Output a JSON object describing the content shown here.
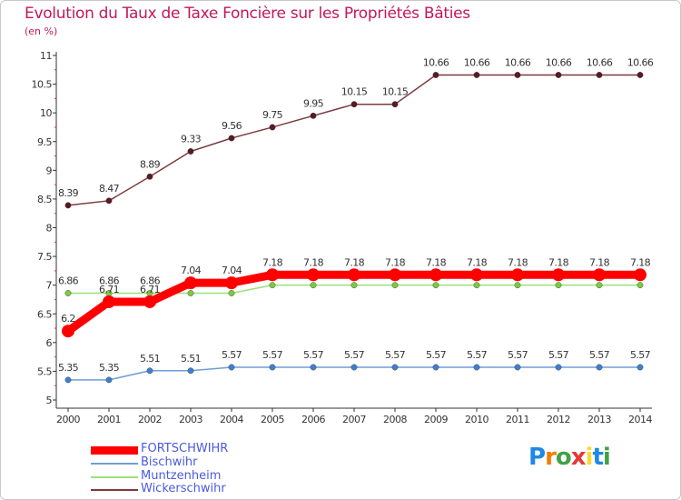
{
  "title": "Evolution du Taux de Taxe Foncière sur les Propriétés Bâties",
  "subtitle": "(en %)",
  "logo": {
    "text": "Proxiti",
    "letters": [
      "P",
      "r",
      "o",
      "x",
      "i",
      "t",
      "i"
    ],
    "colors": [
      "#1e88e5",
      "#f57c00",
      "#43a047",
      "#e53935",
      "#fdd835",
      "#1e88e5",
      "#43a047"
    ]
  },
  "chart_data": {
    "type": "line",
    "x": [
      "2000",
      "2001",
      "2002",
      "2003",
      "2004",
      "2005",
      "2006",
      "2007",
      "2008",
      "2009",
      "2010",
      "2011",
      "2012",
      "2013",
      "2014"
    ],
    "ylim": [
      5,
      11
    ],
    "yticks": [
      "5",
      "5.5",
      "6",
      "6.5",
      "7",
      "7.5",
      "8",
      "8.5",
      "9",
      "9.5",
      "10",
      "10.5",
      "11"
    ],
    "grid": false,
    "legend_position": "bottom-left",
    "series": [
      {
        "name": "FORTSCHWIHR",
        "color": "#ff0000",
        "marker_color": "#ff0000",
        "bold": true,
        "values": [
          6.2,
          6.71,
          6.71,
          7.04,
          7.04,
          7.18,
          7.18,
          7.18,
          7.18,
          7.18,
          7.18,
          7.18,
          7.18,
          7.18,
          7.18
        ],
        "labels": [
          "6.2",
          "6.71",
          "6.71",
          "7.04",
          "7.04",
          "7.18",
          "7.18",
          "7.18",
          "7.18",
          "7.18",
          "7.18",
          "7.18",
          "7.18",
          "7.18",
          "7.18"
        ]
      },
      {
        "name": "Bischwihr",
        "color": "#6e9ed6",
        "marker_color": "#3f7fd0",
        "bold": false,
        "values": [
          5.35,
          5.35,
          5.51,
          5.51,
          5.57,
          5.57,
          5.57,
          5.57,
          5.57,
          5.57,
          5.57,
          5.57,
          5.57,
          5.57,
          5.57
        ],
        "labels": [
          "5.35",
          "5.35",
          "5.51",
          "5.51",
          "5.57",
          "5.57",
          "5.57",
          "5.57",
          "5.57",
          "5.57",
          "5.57",
          "5.57",
          "5.57",
          "5.57",
          "5.57"
        ]
      },
      {
        "name": "Muntzenheim",
        "color": "#9be07a",
        "marker_color": "#7acb3e",
        "bold": false,
        "values": [
          6.86,
          6.86,
          6.86,
          6.86,
          6.86,
          7.0,
          7.0,
          7.0,
          7.0,
          7.0,
          7.0,
          7.0,
          7.0,
          7.0,
          7.0
        ],
        "labels": [
          "6.86",
          "6.86",
          "6.86",
          "",
          "",
          "",
          "",
          "",
          "",
          "",
          "",
          "",
          "",
          "",
          ""
        ]
      },
      {
        "name": "Wickerschwihr",
        "color": "#7b3a3f",
        "marker_color": "#5a1a22",
        "bold": false,
        "values": [
          8.39,
          8.47,
          8.89,
          9.33,
          9.56,
          9.75,
          9.95,
          10.15,
          10.15,
          10.66,
          10.66,
          10.66,
          10.66,
          10.66,
          10.66
        ],
        "labels": [
          "8.39",
          "8.47",
          "8.89",
          "9.33",
          "9.56",
          "9.75",
          "9.95",
          "10.15",
          "10.15",
          "10.66",
          "10.66",
          "10.66",
          "10.66",
          "10.66",
          "10.66"
        ]
      }
    ]
  }
}
